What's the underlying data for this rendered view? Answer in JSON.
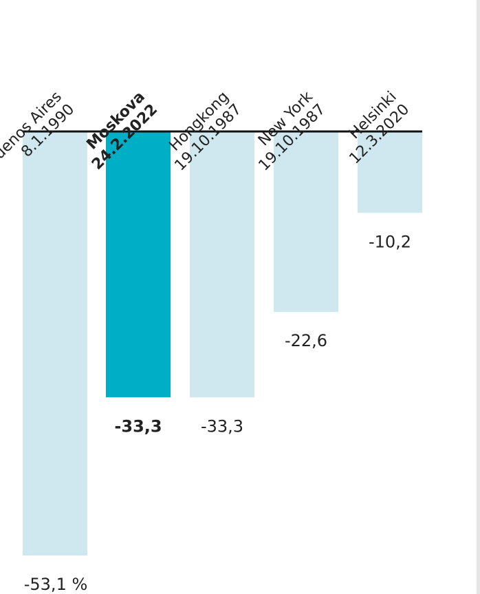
{
  "chart_data": {
    "type": "bar",
    "categories": [
      {
        "line1": "Buenos Aires",
        "line2": "8.1.1990"
      },
      {
        "line1": "Moskova",
        "line2": "24.2.2022"
      },
      {
        "line1": "Hongkong",
        "line2": "19.10.1987"
      },
      {
        "line1": "New York",
        "line2": "19.10.1987"
      },
      {
        "line1": "Helsinki",
        "line2": "12.3.2020"
      }
    ],
    "values": [
      -53.1,
      -33.3,
      -33.3,
      -22.6,
      -10.2
    ],
    "value_labels": [
      "-53,1 %",
      "-33,3",
      "-33,3",
      "-22,6",
      "-10,2"
    ],
    "highlight_index": 1,
    "ylim": [
      -53.1,
      0
    ],
    "grid": false,
    "legend": "none"
  },
  "colors": {
    "bar": "#cfe8ef",
    "highlight": "#00aec6",
    "axis": "#111111",
    "text": "#222222"
  }
}
